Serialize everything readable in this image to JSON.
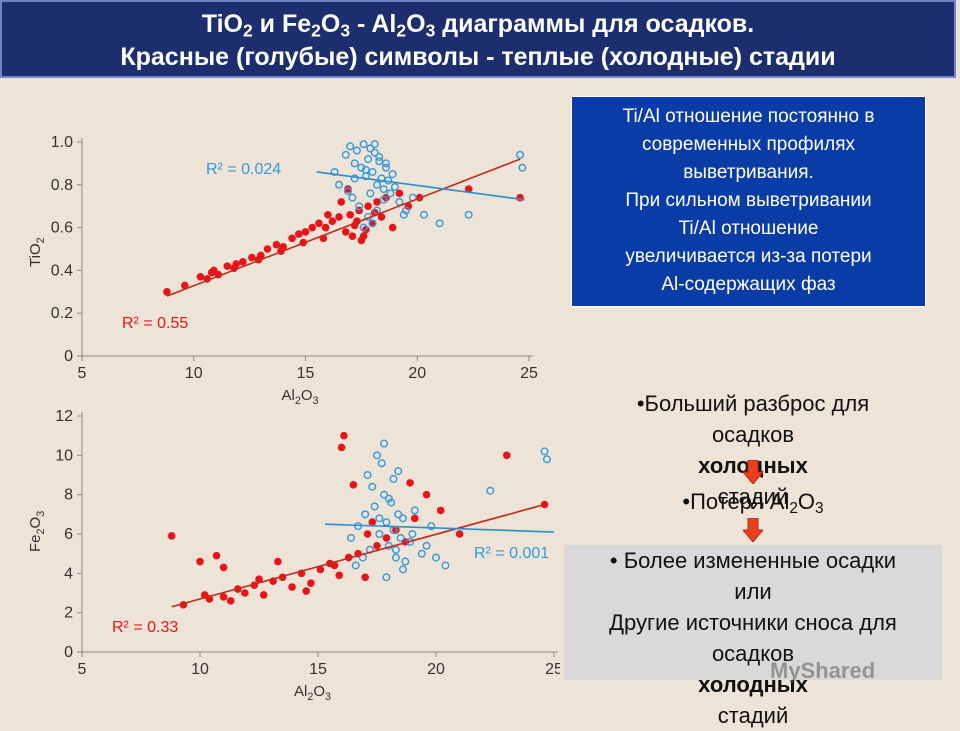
{
  "header": {
    "line1": [
      "TiO",
      "2",
      " и Fe",
      "2",
      "O",
      "3",
      " - Al",
      "2",
      "O",
      "3",
      " диаграммы для осадков."
    ],
    "line2": "Красные (голубые) символы - теплые (холодные) стадии"
  },
  "info_box": {
    "lines": [
      "Ti/Al отношение постоянно в",
      "современных профилях",
      "выветривания.",
      "При сильном выветривании",
      "Ti/Al отношение",
      "увеличивается из-за потери",
      "Al-содержащих фаз"
    ]
  },
  "right_panel": {
    "point1_lines": [
      "•Больший разброс для",
      "осадков ",
      "холодных",
      " стадий"
    ],
    "point2": [
      "•Потеря Al",
      "2",
      "O",
      "3"
    ],
    "point3_lines": [
      "• Более измененные осадки",
      "или",
      "Другие источники сноса для",
      "осадков ",
      "холодных",
      " стадий"
    ]
  },
  "watermark": "MyShared",
  "colors": {
    "warm": "#e8141a",
    "cold": "#3399dd",
    "title_bg": "#1c2e6e",
    "info_bg": "#0a3ca8",
    "arrow": "#e8401c"
  },
  "chart_data": [
    {
      "type": "scatter",
      "xlabel": [
        "Al",
        "2",
        "O",
        "3"
      ],
      "ylabel": [
        "TiO",
        "2"
      ],
      "xlim": [
        5,
        25
      ],
      "ylim": [
        0,
        1.0
      ],
      "xticks": [
        "5",
        "10",
        "15",
        "20",
        "25"
      ],
      "yticks": [
        "0",
        "0.2",
        "0.4",
        "0.6",
        "0.8",
        "1.0"
      ],
      "annotations": {
        "warm_r2": "R² = 0.55",
        "cold_r2": "R² = 0.024"
      },
      "trendlines": [
        {
          "series": "warm",
          "x": [
            8.8,
            24.6
          ],
          "y": [
            0.28,
            0.92
          ]
        },
        {
          "series": "cold",
          "x": [
            15.5,
            24.8
          ],
          "y": [
            0.86,
            0.73
          ]
        }
      ],
      "series": [
        {
          "color": "warm",
          "marker": "filled-circle",
          "x": [
            8.8,
            9.6,
            10.3,
            10.6,
            10.9,
            11.1,
            11.5,
            11.8,
            12.2,
            12.6,
            13.0,
            13.3,
            13.7,
            14.0,
            14.4,
            14.7,
            15.0,
            15.3,
            15.6,
            15.9,
            16.2,
            16.5,
            16.8,
            17.0,
            17.2,
            17.4,
            17.6,
            17.8,
            18.0,
            18.2,
            18.4,
            18.6,
            18.9,
            19.2,
            19.6,
            20.1,
            22.3,
            24.6,
            16.0,
            16.6,
            17.1,
            17.3,
            17.7,
            15.8,
            14.9,
            13.9,
            12.9,
            11.9,
            10.8,
            16.9,
            17.5,
            18.1
          ],
          "y": [
            0.3,
            0.33,
            0.37,
            0.36,
            0.4,
            0.38,
            0.42,
            0.41,
            0.44,
            0.46,
            0.47,
            0.5,
            0.52,
            0.51,
            0.55,
            0.57,
            0.58,
            0.6,
            0.62,
            0.6,
            0.63,
            0.65,
            0.58,
            0.66,
            0.61,
            0.68,
            0.56,
            0.7,
            0.62,
            0.72,
            0.65,
            0.74,
            0.6,
            0.76,
            0.7,
            0.74,
            0.78,
            0.74,
            0.66,
            0.72,
            0.56,
            0.63,
            0.59,
            0.55,
            0.53,
            0.49,
            0.45,
            0.43,
            0.39,
            0.78,
            0.54,
            0.67
          ]
        },
        {
          "color": "cold",
          "marker": "open-circle",
          "x": [
            16.8,
            17.0,
            17.2,
            17.3,
            17.5,
            17.6,
            17.7,
            17.8,
            17.9,
            18.0,
            18.1,
            18.2,
            18.3,
            18.4,
            18.5,
            18.6,
            18.7,
            18.8,
            18.9,
            19.0,
            19.2,
            19.5,
            19.8,
            20.3,
            16.5,
            16.3,
            17.1,
            17.4,
            17.8,
            18.0,
            18.2,
            17.6,
            17.9,
            18.3,
            18.5,
            17.2,
            16.9,
            19.4,
            21.0,
            22.3,
            24.6,
            24.7,
            18.1,
            17.7,
            18.6
          ],
          "y": [
            0.94,
            0.98,
            0.9,
            0.96,
            0.88,
            0.99,
            0.84,
            0.92,
            0.97,
            0.86,
            0.95,
            0.8,
            0.91,
            0.83,
            0.78,
            0.88,
            0.82,
            0.76,
            0.85,
            0.79,
            0.72,
            0.68,
            0.74,
            0.66,
            0.8,
            0.86,
            0.74,
            0.7,
            0.65,
            0.62,
            0.68,
            0.6,
            0.76,
            0.93,
            0.73,
            0.83,
            0.77,
            0.66,
            0.62,
            0.66,
            0.94,
            0.88,
            0.99,
            0.87,
            0.9
          ]
        }
      ]
    },
    {
      "type": "scatter",
      "xlabel": [
        "Al",
        "2",
        "O",
        "3"
      ],
      "ylabel": [
        "Fe",
        "2",
        "O",
        "3"
      ],
      "xlim": [
        5,
        25
      ],
      "ylim": [
        0,
        12
      ],
      "xticks": [
        "5",
        "10",
        "15",
        "20",
        "25"
      ],
      "yticks": [
        "0",
        "2",
        "4",
        "6",
        "8",
        "10",
        "12"
      ],
      "annotations": {
        "warm_r2": "R² = 0.33",
        "cold_r2": "R² = 0.001"
      },
      "trendlines": [
        {
          "series": "warm",
          "x": [
            8.8,
            24.6
          ],
          "y": [
            2.3,
            7.5
          ]
        },
        {
          "series": "cold",
          "x": [
            15.3,
            25.0
          ],
          "y": [
            6.5,
            6.1
          ]
        }
      ],
      "series": [
        {
          "color": "warm",
          "marker": "filled-circle",
          "x": [
            8.8,
            9.3,
            10.0,
            10.4,
            10.7,
            11.0,
            11.3,
            11.6,
            11.9,
            12.3,
            12.7,
            13.1,
            13.5,
            13.9,
            14.3,
            14.7,
            15.1,
            15.5,
            15.9,
            16.3,
            16.7,
            17.1,
            17.5,
            17.9,
            18.3,
            18.7,
            19.1,
            19.6,
            20.2,
            21.0,
            23.0,
            24.6,
            16.1,
            16.5,
            17.0,
            13.3,
            11.0,
            10.2,
            12.5,
            14.5,
            15.7,
            17.3,
            18.9,
            16.0
          ],
          "y": [
            5.9,
            2.4,
            4.6,
            2.7,
            4.9,
            2.8,
            2.6,
            3.2,
            3.0,
            3.4,
            2.9,
            3.6,
            3.8,
            3.3,
            4.0,
            3.5,
            4.2,
            4.5,
            3.9,
            4.8,
            5.0,
            6.0,
            5.4,
            5.8,
            6.2,
            5.6,
            6.8,
            8.0,
            7.2,
            6.0,
            10.0,
            7.5,
            11.0,
            8.5,
            3.8,
            4.6,
            4.3,
            2.9,
            3.7,
            3.1,
            4.4,
            6.6,
            8.6,
            10.4
          ]
        },
        {
          "color": "cold",
          "marker": "open-circle",
          "x": [
            16.4,
            16.7,
            17.0,
            17.2,
            17.4,
            17.6,
            17.8,
            17.9,
            18.0,
            18.1,
            18.2,
            18.3,
            18.4,
            18.5,
            18.6,
            18.7,
            18.9,
            19.1,
            19.4,
            19.8,
            20.4,
            16.9,
            17.3,
            17.7,
            18.2,
            18.6,
            19.0,
            17.5,
            17.8,
            18.4,
            17.1,
            16.6,
            19.6,
            20.0,
            22.3,
            24.6,
            24.7,
            17.9,
            18.3,
            17.6,
            18.0
          ],
          "y": [
            5.8,
            6.4,
            7.0,
            5.2,
            7.4,
            6.0,
            8.0,
            6.6,
            5.4,
            7.6,
            6.2,
            4.8,
            7.0,
            5.8,
            6.8,
            4.6,
            5.6,
            7.2,
            5.0,
            6.4,
            4.4,
            4.8,
            8.4,
            9.6,
            8.8,
            4.2,
            6.0,
            10.0,
            10.6,
            9.2,
            9.0,
            4.4,
            5.4,
            4.8,
            8.2,
            10.2,
            9.8,
            3.8,
            5.2,
            6.8,
            7.8
          ]
        }
      ]
    }
  ]
}
